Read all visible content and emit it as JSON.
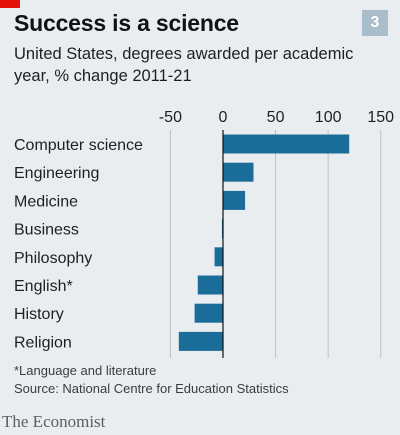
{
  "header": {
    "title": "Success is a science",
    "badge": "3",
    "subtitle": "United States, degrees awarded per academic year, % change 2011-21"
  },
  "footer": {
    "note": "*Language and literature",
    "source": "Source: National Centre for Education Statistics",
    "brand": "The Economist"
  },
  "colors": {
    "bar": "#1b6d99",
    "accent_red": "#e3120b",
    "badge": "#a9bdcb",
    "background": "#e9edf0",
    "gridline": "#b7c3cc"
  },
  "chart_data": {
    "type": "bar",
    "orientation": "horizontal",
    "categories": [
      "Computer science",
      "Engineering",
      "Medicine",
      "Business",
      "Philosophy",
      "English*",
      "History",
      "Religion"
    ],
    "values": [
      120,
      29,
      21,
      -1,
      -8,
      -24,
      -27,
      -42
    ],
    "xticks": [
      -50,
      0,
      50,
      100,
      150
    ],
    "xlim": [
      -58,
      155
    ],
    "axis_position": "top",
    "grid": true
  }
}
